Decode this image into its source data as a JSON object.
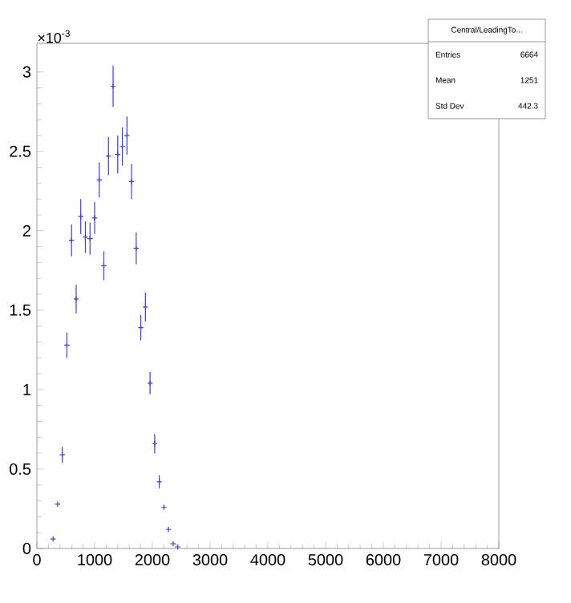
{
  "chart_data": {
    "type": "scatter",
    "x": [
      280,
      360,
      440,
      520,
      600,
      680,
      760,
      840,
      920,
      1000,
      1080,
      1160,
      1240,
      1320,
      1400,
      1480,
      1560,
      1640,
      1720,
      1800,
      1880,
      1960,
      2040,
      2120,
      2200,
      2280,
      2360,
      2440
    ],
    "series": [
      {
        "color": "#4040c8",
        "values": [
          0.06,
          0.28,
          0.59,
          1.28,
          1.94,
          1.57,
          2.09,
          1.96,
          1.95,
          2.08,
          2.32,
          1.78,
          2.47,
          2.91,
          2.48,
          2.53,
          2.6,
          2.31,
          1.89,
          1.39,
          1.52,
          1.04,
          0.66,
          0.42,
          0.26,
          0.12,
          0.03,
          0.01
        ],
        "errors": [
          null,
          null,
          0.05,
          0.08,
          0.1,
          0.09,
          0.11,
          0.1,
          0.1,
          0.1,
          0.11,
          0.09,
          0.12,
          0.13,
          0.12,
          0.12,
          0.12,
          0.11,
          0.1,
          0.08,
          0.09,
          0.07,
          0.06,
          0.04,
          null,
          null,
          null,
          null
        ]
      }
    ],
    "marker": "cross",
    "xlim": [
      0,
      8000
    ],
    "xticks": [
      0,
      1000,
      2000,
      3000,
      4000,
      5000,
      6000,
      7000,
      8000
    ],
    "ylim": [
      0,
      3.18
    ],
    "yticks": [
      0,
      0.5,
      1,
      1.5,
      2,
      2.5,
      3
    ],
    "annotations": [
      "×10$^{-3}$",
      "Central/LeadingTo...",
      "Entries",
      "6664",
      "Mean",
      "1251",
      "Std Dev",
      "442.3"
    ]
  }
}
